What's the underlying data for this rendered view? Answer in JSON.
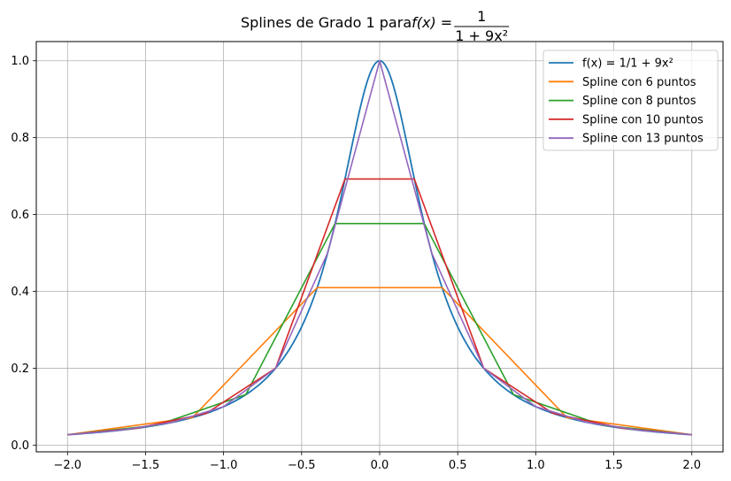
{
  "chart_data": {
    "type": "line",
    "title": {
      "prefix": "Splines de Grado 1 para ",
      "lhs": "f(x) = ",
      "numerator": "1",
      "denominator": "1 + 9x²"
    },
    "xlabel": "",
    "ylabel": "",
    "xlim": [
      -2.2,
      2.2
    ],
    "ylim": [
      -0.0175,
      1.05
    ],
    "xticks": [
      -2.0,
      -1.5,
      -1.0,
      -0.5,
      0.0,
      0.5,
      1.0,
      1.5,
      2.0
    ],
    "xtick_labels": [
      "−2.0",
      "−1.5",
      "−1.0",
      "−0.5",
      "0.0",
      "0.5",
      "1.0",
      "1.5",
      "2.0"
    ],
    "yticks": [
      0.0,
      0.2,
      0.4,
      0.6,
      0.8,
      1.0
    ],
    "ytick_labels": [
      "0.0",
      "0.2",
      "0.4",
      "0.6",
      "0.8",
      "1.0"
    ],
    "grid": true,
    "legend_position": "top-right",
    "function": {
      "name": "f(x) = 1/1 + 9x²",
      "color": "#1f77b4",
      "expression": "1/(1+9x^2)",
      "domain": [
        -2.0,
        2.0
      ]
    },
    "series": [
      {
        "name": "Spline con 6 puntos",
        "color": "#ff7f0e",
        "x": [
          -2.0,
          -1.2,
          -0.4,
          0.4,
          1.2,
          2.0
        ],
        "y": [
          0.027,
          0.0716,
          0.4098,
          0.4098,
          0.0716,
          0.027
        ]
      },
      {
        "name": "Spline con 8 puntos",
        "color": "#2ca02c",
        "x": [
          -2.0,
          -1.4286,
          -0.8571,
          -0.2857,
          0.2857,
          0.8571,
          1.4286,
          2.0
        ],
        "y": [
          0.027,
          0.0516,
          0.1314,
          0.5765,
          0.5765,
          0.1314,
          0.0516,
          0.027
        ]
      },
      {
        "name": "Spline con 10 puntos",
        "color": "#d62728",
        "x": [
          -2.0,
          -1.5556,
          -1.1111,
          -0.6667,
          -0.2222,
          0.2222,
          0.6667,
          1.1111,
          1.5556,
          2.0
        ],
        "y": [
          0.027,
          0.0439,
          0.0826,
          0.2,
          0.6923,
          0.6923,
          0.2,
          0.0826,
          0.0439,
          0.027
        ]
      },
      {
        "name": "Spline con 13 puntos",
        "color": "#9467bd",
        "x": [
          -2.0,
          -1.6667,
          -1.3333,
          -1.0,
          -0.6667,
          -0.3333,
          0.0,
          0.3333,
          0.6667,
          1.0,
          1.3333,
          1.6667,
          2.0
        ],
        "y": [
          0.027,
          0.0385,
          0.0588,
          0.1,
          0.2,
          0.5,
          1.0,
          0.5,
          0.2,
          0.1,
          0.0588,
          0.0385,
          0.027
        ]
      }
    ]
  }
}
